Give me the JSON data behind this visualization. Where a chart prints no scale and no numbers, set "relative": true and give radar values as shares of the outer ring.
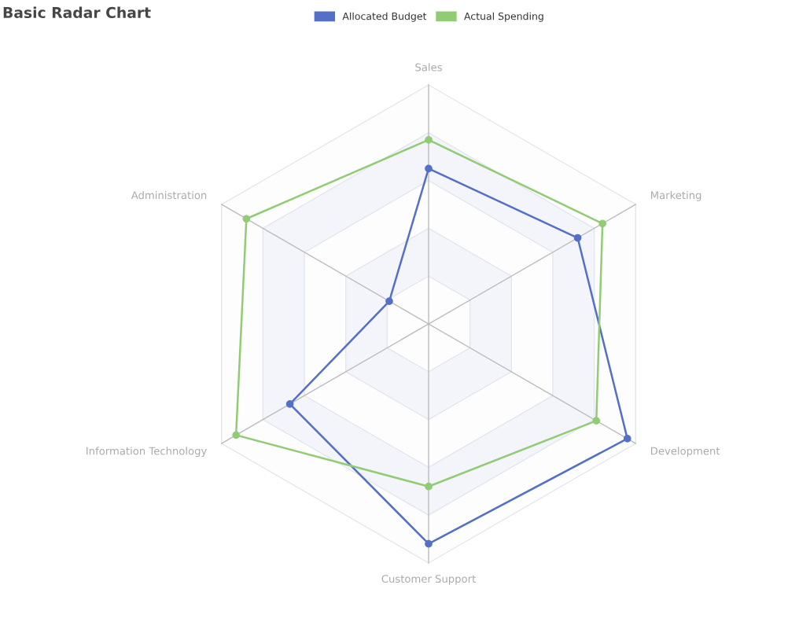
{
  "chart_data": {
    "type": "radar",
    "title": "Basic Radar Chart",
    "relative": true,
    "grid": true,
    "legend": "top",
    "marker": "circle",
    "line_style": "solid",
    "categories": [
      "Sales",
      "Marketing",
      "Development",
      "Customer Support",
      "Information Technology",
      "Administration"
    ],
    "series": [
      {
        "name": "Allocated Budget",
        "color": "#5470c6",
        "values": [
          0.65,
          0.72,
          0.96,
          0.92,
          0.67,
          0.19
        ]
      },
      {
        "name": "Actual Spending",
        "color": "#91cc75",
        "values": [
          0.77,
          0.84,
          0.81,
          0.68,
          0.93,
          0.88
        ]
      }
    ]
  }
}
